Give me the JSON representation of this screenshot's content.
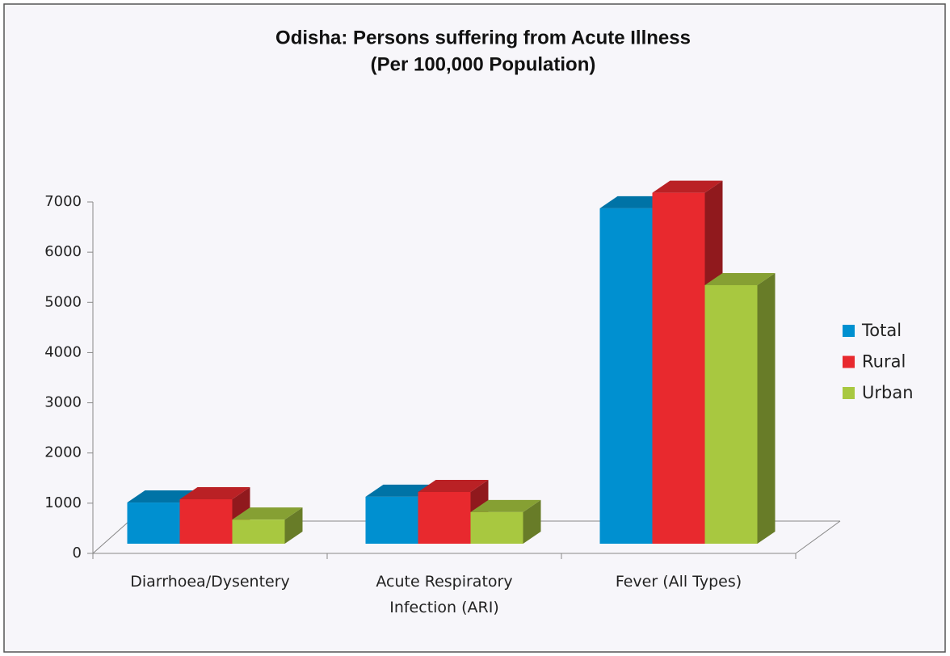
{
  "chart_data": {
    "type": "bar3d",
    "title": "Odisha: Persons suffering from Acute Illness",
    "subtitle": "(Per 100,000 Population)",
    "categories": [
      "Diarrhoea/Dysentery",
      "Acute Respiratory Infection (ARI)",
      "Fever (All Types)"
    ],
    "series": [
      {
        "name": "Total",
        "color": "#0090d0",
        "values": [
          820,
          935,
          6680
        ]
      },
      {
        "name": "Rural",
        "color": "#e8292e",
        "values": [
          885,
          1030,
          6990
        ]
      },
      {
        "name": "Urban",
        "color": "#a8c840",
        "values": [
          480,
          630,
          5150
        ]
      }
    ],
    "ylim": [
      0,
      7000
    ],
    "yticks": [
      0,
      1000,
      2000,
      3000,
      4000,
      5000,
      6000,
      7000
    ],
    "legend": "right"
  }
}
